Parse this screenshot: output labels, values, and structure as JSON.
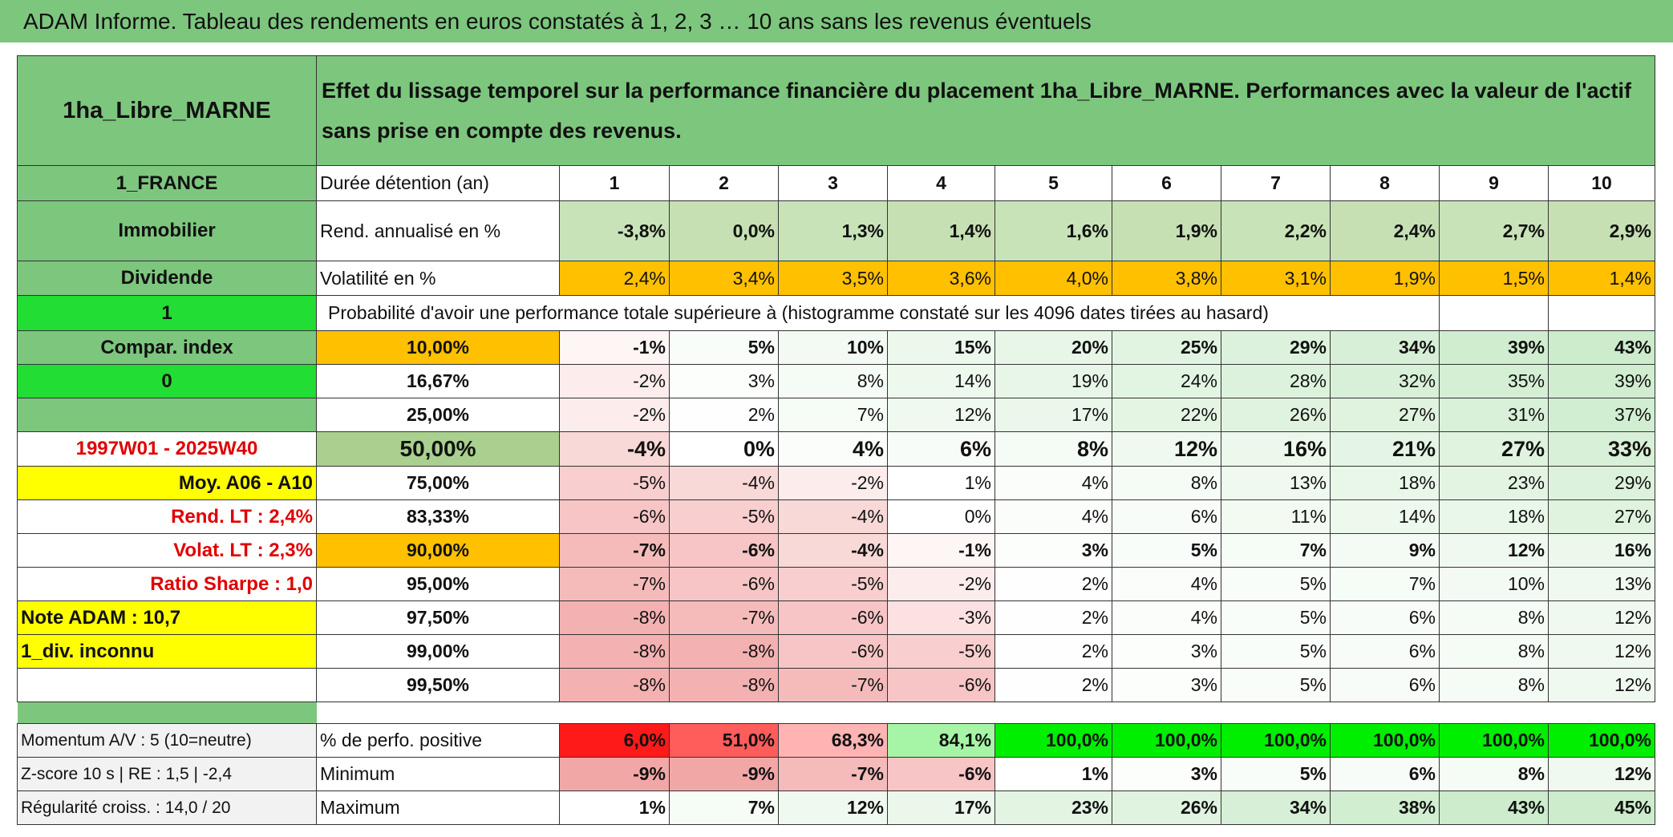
{
  "title": "ADAM Informe. Tableau des rendements en euros constatés à 1, 2, 3 … 10 ans sans les revenus éventuels",
  "table": {
    "header": {
      "asset": "1ha_Libre_MARNE",
      "description": "Effet du lissage temporel sur la performance financière du placement 1ha_Libre_MARNE. Performances avec la valeur de l'actif sans prise en compte des revenus."
    },
    "rows": [
      {
        "left": "1_FRANCE",
        "label": "Durée détention (an)",
        "cells": [
          "1",
          "2",
          "3",
          "4",
          "5",
          "6",
          "7",
          "8",
          "9",
          "10"
        ]
      },
      {
        "left": "Immobilier",
        "label": "Rend. annualisé en %",
        "cells": [
          "-3,8%",
          "0,0%",
          "1,3%",
          "1,4%",
          "1,6%",
          "1,9%",
          "2,2%",
          "2,4%",
          "2,7%",
          "2,9%"
        ]
      },
      {
        "left": "Dividende",
        "label": "Volatilité en %",
        "cells": [
          "2,4%",
          "3,4%",
          "3,5%",
          "3,6%",
          "4,0%",
          "3,8%",
          "3,1%",
          "1,9%",
          "1,5%",
          "1,4%"
        ]
      },
      {
        "left": "1",
        "label": "Probabilité d'avoir une performance totale supérieure à (histogramme constaté sur les 4096 dates tirées au hasard)"
      },
      {
        "left": "Compar. index",
        "label": "10,00%",
        "cells": [
          "-1%",
          "5%",
          "10%",
          "15%",
          "20%",
          "25%",
          "29%",
          "34%",
          "39%",
          "43%"
        ]
      },
      {
        "left": "0",
        "label": "16,67%",
        "cells": [
          "-2%",
          "3%",
          "8%",
          "14%",
          "19%",
          "24%",
          "28%",
          "32%",
          "35%",
          "39%"
        ]
      },
      {
        "left": null,
        "label": "25,00%",
        "cells": [
          "-2%",
          "2%",
          "7%",
          "12%",
          "17%",
          "22%",
          "26%",
          "27%",
          "31%",
          "37%"
        ]
      },
      {
        "left": "1997W01 - 2025W40",
        "label": "50,00%",
        "cells": [
          "-4%",
          "0%",
          "4%",
          "6%",
          "8%",
          "12%",
          "16%",
          "21%",
          "27%",
          "33%"
        ]
      },
      {
        "left": "Moy. A06 - A10",
        "label": "75,00%",
        "cells": [
          "-5%",
          "-4%",
          "-2%",
          "1%",
          "4%",
          "8%",
          "13%",
          "18%",
          "23%",
          "29%"
        ]
      },
      {
        "left": "Rend. LT :   2,4%",
        "label": "83,33%",
        "cells": [
          "-6%",
          "-5%",
          "-4%",
          "0%",
          "4%",
          "6%",
          "11%",
          "14%",
          "18%",
          "27%"
        ]
      },
      {
        "left": "Volat. LT :   2,3%",
        "label": "90,00%",
        "cells": [
          "-7%",
          "-6%",
          "-4%",
          "-1%",
          "3%",
          "5%",
          "7%",
          "9%",
          "12%",
          "16%"
        ]
      },
      {
        "left": "Ratio Sharpe :   1,0",
        "label": "95,00%",
        "cells": [
          "-7%",
          "-6%",
          "-5%",
          "-2%",
          "2%",
          "4%",
          "5%",
          "7%",
          "10%",
          "13%"
        ]
      },
      {
        "left": "Note ADAM : 10,7",
        "label": "97,50%",
        "cells": [
          "-8%",
          "-7%",
          "-6%",
          "-3%",
          "2%",
          "4%",
          "5%",
          "6%",
          "8%",
          "12%"
        ]
      },
      {
        "left": "1_div. inconnu",
        "label": "99,00%",
        "cells": [
          "-8%",
          "-8%",
          "-6%",
          "-5%",
          "2%",
          "3%",
          "5%",
          "6%",
          "8%",
          "12%"
        ]
      },
      {
        "left": null,
        "label": "99,50%",
        "cells": [
          "-8%",
          "-8%",
          "-7%",
          "-6%",
          "2%",
          "3%",
          "5%",
          "6%",
          "8%",
          "12%"
        ]
      },
      {
        "left": "Momentum A/V : 5 (10=neutre)",
        "label": "% de perfo. positive",
        "cells": [
          "6,0%",
          "51,0%",
          "68,3%",
          "84,1%",
          "100,0%",
          "100,0%",
          "100,0%",
          "100,0%",
          "100,0%",
          "100,0%"
        ]
      },
      {
        "left": "Z-score 10 s | RE : 1,5 | -2,4",
        "label": "Minimum",
        "cells": [
          "-9%",
          "-9%",
          "-7%",
          "-6%",
          "1%",
          "3%",
          "5%",
          "6%",
          "8%",
          "12%"
        ]
      },
      {
        "left": "Régularité croiss. : 14,0 / 20",
        "label": "Maximum",
        "cells": [
          "1%",
          "7%",
          "12%",
          "17%",
          "23%",
          "26%",
          "34%",
          "38%",
          "43%",
          "45%"
        ]
      }
    ]
  }
}
